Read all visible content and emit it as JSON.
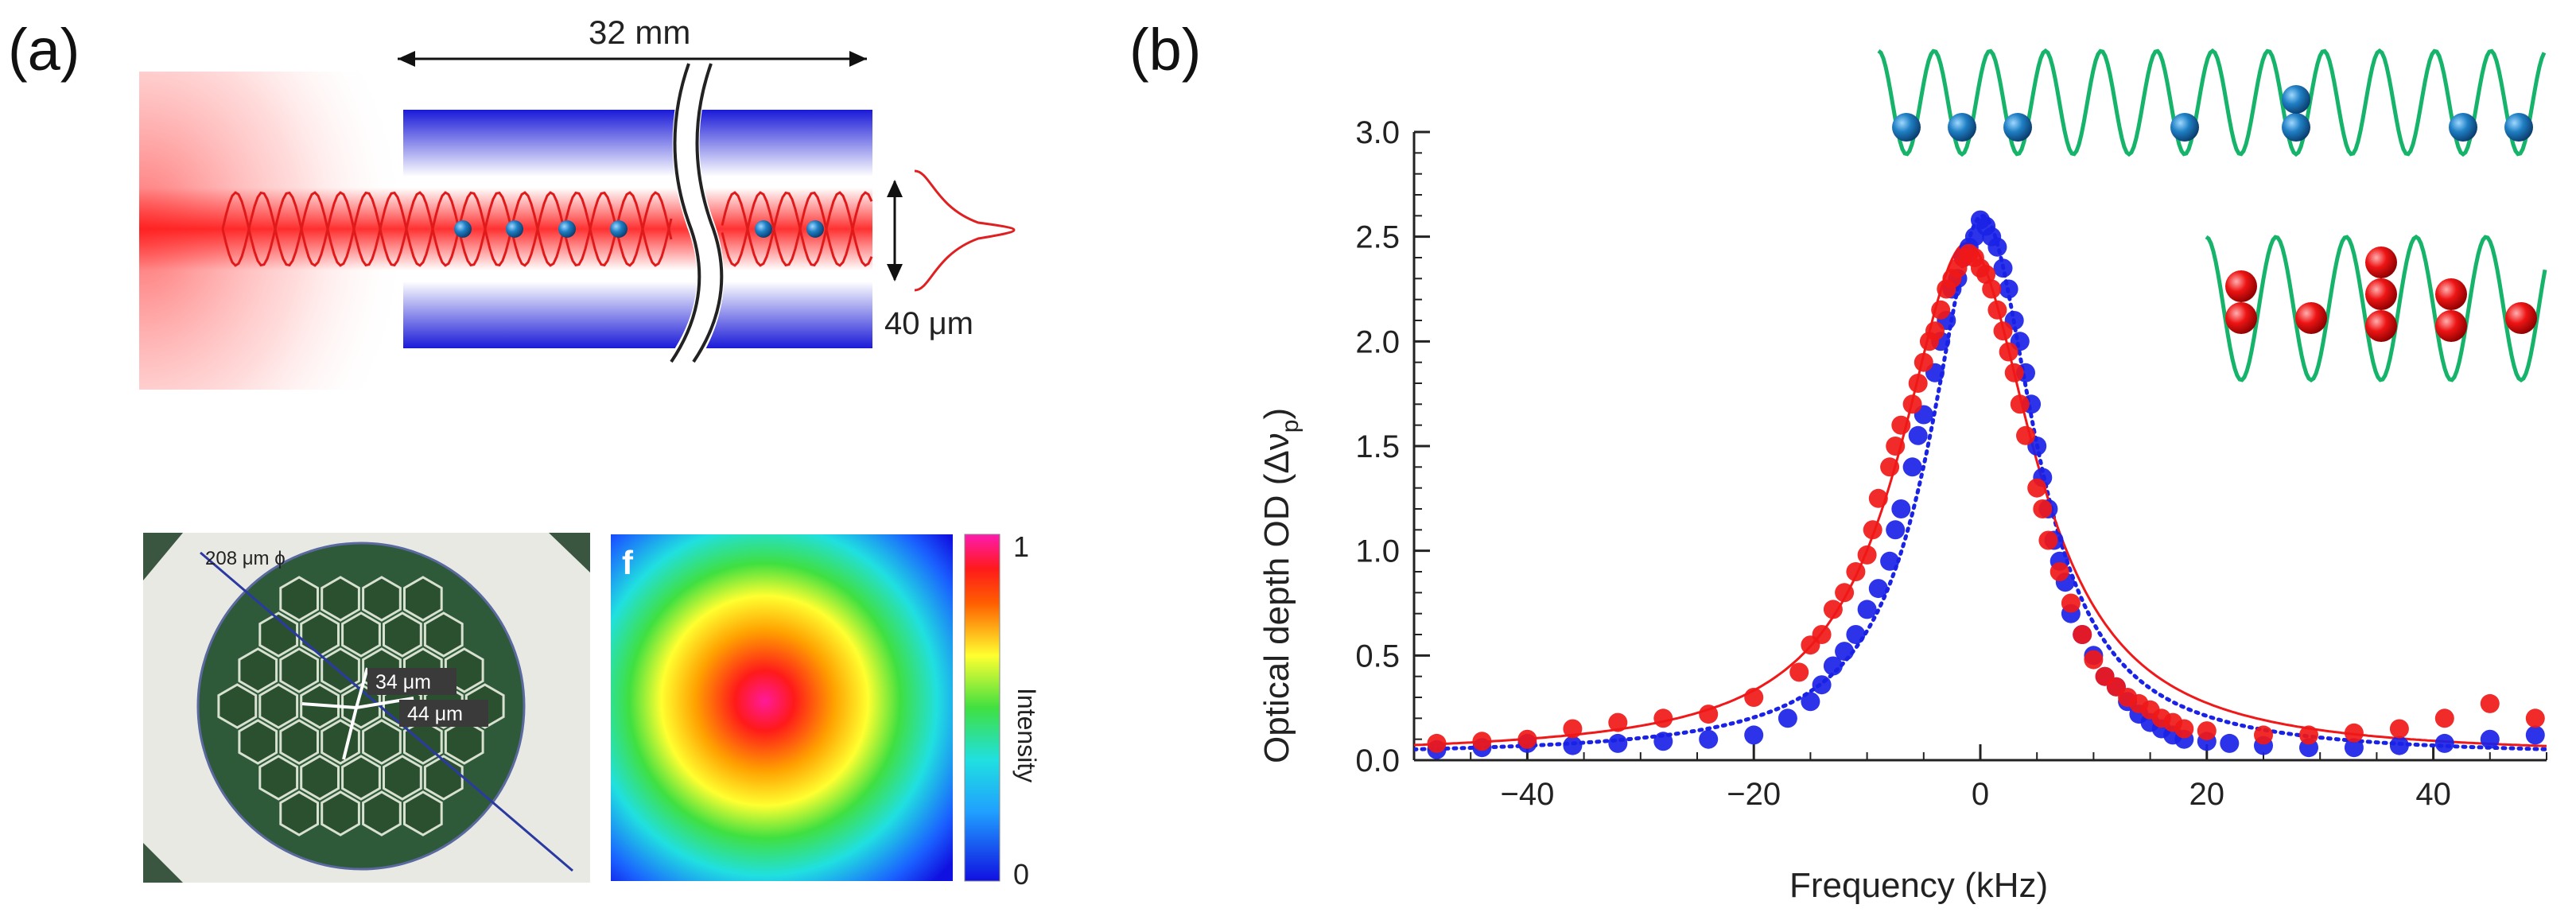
{
  "panel_a": {
    "label": "(a)",
    "fiber_length": "32 mm",
    "beam_waist": "40 μm",
    "micrograph": {
      "diameter": "208 μm ϕ",
      "pitch_1": "34 μm",
      "pitch_2": "44 μm"
    },
    "mode_profile": {
      "panel_letter": "f",
      "colorbar_label": "Intensity",
      "colorbar_max": "1",
      "colorbar_min": "0"
    }
  },
  "panel_b": {
    "label": "(b)"
  },
  "colors": {
    "blue_series": "#1a22e6",
    "red_series": "#f01818",
    "lattice": "#16b36a",
    "blue_atom": "#1f7fc4",
    "red_atom": "#e81010"
  },
  "chart_data": {
    "type": "scatter",
    "title": "",
    "xlabel": "Frequency (kHz)",
    "ylabel": "Optical depth OD (Δν",
    "ylabel_sub": "p",
    "ylabel_close": ")",
    "xlim": [
      -50,
      50
    ],
    "ylim": [
      0,
      3.0
    ],
    "xticks": [
      -40,
      -20,
      0,
      20,
      40
    ],
    "xtick_labels": [
      "−40",
      "−20",
      "0",
      "20",
      "40"
    ],
    "yticks": [
      0.0,
      0.5,
      1.0,
      1.5,
      2.0,
      2.5,
      3.0
    ],
    "ytick_labels": [
      "0.0",
      "0.5",
      "1.0",
      "1.5",
      "2.0",
      "2.5",
      "3.0"
    ],
    "grid": false,
    "series": [
      {
        "name": "blue",
        "color": "#1a22e6",
        "fit_width": 5.6,
        "fit_peak": 2.58,
        "fit_center": 0.2,
        "fit_style": "dotted",
        "points": [
          [
            -48,
            0.05
          ],
          [
            -44,
            0.06
          ],
          [
            -40,
            0.08
          ],
          [
            -36,
            0.07
          ],
          [
            -32,
            0.08
          ],
          [
            -28,
            0.09
          ],
          [
            -24,
            0.1
          ],
          [
            -20,
            0.12
          ],
          [
            -17,
            0.2
          ],
          [
            -15,
            0.28
          ],
          [
            -14,
            0.36
          ],
          [
            -13,
            0.45
          ],
          [
            -12,
            0.52
          ],
          [
            -11,
            0.6
          ],
          [
            -10,
            0.72
          ],
          [
            -9,
            0.82
          ],
          [
            -8,
            0.95
          ],
          [
            -7.5,
            1.1
          ],
          [
            -7,
            1.2
          ],
          [
            -6,
            1.4
          ],
          [
            -5.5,
            1.55
          ],
          [
            -5,
            1.65
          ],
          [
            -4,
            1.85
          ],
          [
            -3.5,
            2.0
          ],
          [
            -3,
            2.1
          ],
          [
            -2.5,
            2.25
          ],
          [
            -2,
            2.3
          ],
          [
            -1.5,
            2.4
          ],
          [
            -1,
            2.45
          ],
          [
            -0.5,
            2.5
          ],
          [
            0,
            2.58
          ],
          [
            0.5,
            2.55
          ],
          [
            1,
            2.5
          ],
          [
            1.5,
            2.45
          ],
          [
            2,
            2.35
          ],
          [
            2.5,
            2.25
          ],
          [
            3,
            2.1
          ],
          [
            3.5,
            2.0
          ],
          [
            4,
            1.85
          ],
          [
            4.5,
            1.7
          ],
          [
            5,
            1.5
          ],
          [
            5.5,
            1.35
          ],
          [
            6,
            1.2
          ],
          [
            6.5,
            1.05
          ],
          [
            7,
            0.95
          ],
          [
            7.5,
            0.85
          ],
          [
            8,
            0.7
          ],
          [
            9,
            0.6
          ],
          [
            10,
            0.5
          ],
          [
            11,
            0.4
          ],
          [
            12,
            0.35
          ],
          [
            13,
            0.28
          ],
          [
            14,
            0.22
          ],
          [
            15,
            0.18
          ],
          [
            16,
            0.15
          ],
          [
            17,
            0.12
          ],
          [
            18,
            0.1
          ],
          [
            20,
            0.09
          ],
          [
            22,
            0.08
          ],
          [
            25,
            0.07
          ],
          [
            29,
            0.06
          ],
          [
            33,
            0.06
          ],
          [
            37,
            0.07
          ],
          [
            41,
            0.08
          ],
          [
            45,
            0.1
          ],
          [
            49,
            0.12
          ]
        ]
      },
      {
        "name": "red",
        "color": "#f01818",
        "fit_width": 7.2,
        "fit_peak": 2.45,
        "fit_center": -1.2,
        "fit_style": "solid",
        "points": [
          [
            -48,
            0.08
          ],
          [
            -44,
            0.09
          ],
          [
            -40,
            0.1
          ],
          [
            -36,
            0.15
          ],
          [
            -32,
            0.18
          ],
          [
            -28,
            0.2
          ],
          [
            -24,
            0.22
          ],
          [
            -20,
            0.3
          ],
          [
            -16,
            0.42
          ],
          [
            -15,
            0.55
          ],
          [
            -14,
            0.6
          ],
          [
            -13,
            0.72
          ],
          [
            -12,
            0.8
          ],
          [
            -11,
            0.9
          ],
          [
            -10,
            0.98
          ],
          [
            -9.5,
            1.1
          ],
          [
            -9,
            1.25
          ],
          [
            -8,
            1.4
          ],
          [
            -7.5,
            1.5
          ],
          [
            -7,
            1.6
          ],
          [
            -6,
            1.7
          ],
          [
            -5.5,
            1.8
          ],
          [
            -5,
            1.9
          ],
          [
            -4.5,
            2.0
          ],
          [
            -4,
            2.05
          ],
          [
            -3.5,
            2.15
          ],
          [
            -3,
            2.25
          ],
          [
            -2.5,
            2.3
          ],
          [
            -2,
            2.35
          ],
          [
            -1.5,
            2.4
          ],
          [
            -1,
            2.42
          ],
          [
            -0.5,
            2.4
          ],
          [
            0,
            2.35
          ],
          [
            0.5,
            2.32
          ],
          [
            1,
            2.25
          ],
          [
            1.5,
            2.15
          ],
          [
            2,
            2.05
          ],
          [
            2.5,
            1.95
          ],
          [
            3,
            1.85
          ],
          [
            3.5,
            1.7
          ],
          [
            4,
            1.55
          ],
          [
            5,
            1.3
          ],
          [
            5.5,
            1.2
          ],
          [
            6,
            1.05
          ],
          [
            7,
            0.9
          ],
          [
            8,
            0.75
          ],
          [
            9,
            0.6
          ],
          [
            10,
            0.48
          ],
          [
            11,
            0.4
          ],
          [
            12,
            0.35
          ],
          [
            13,
            0.3
          ],
          [
            14,
            0.27
          ],
          [
            15,
            0.24
          ],
          [
            16,
            0.2
          ],
          [
            17,
            0.18
          ],
          [
            18,
            0.15
          ],
          [
            20,
            0.14
          ],
          [
            25,
            0.12
          ],
          [
            29,
            0.12
          ],
          [
            33,
            0.13
          ],
          [
            37,
            0.15
          ],
          [
            41,
            0.2
          ],
          [
            45,
            0.27
          ],
          [
            49,
            0.2
          ]
        ]
      }
    ]
  }
}
